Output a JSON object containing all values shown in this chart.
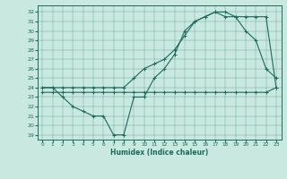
{
  "xlabel": "Humidex (Indice chaleur)",
  "xlim": [
    -0.5,
    23.5
  ],
  "ylim": [
    18.5,
    32.7
  ],
  "yticks": [
    19,
    20,
    21,
    22,
    23,
    24,
    25,
    26,
    27,
    28,
    29,
    30,
    31,
    32
  ],
  "xticks": [
    0,
    1,
    2,
    3,
    4,
    5,
    6,
    7,
    8,
    9,
    10,
    11,
    12,
    13,
    14,
    15,
    16,
    17,
    18,
    19,
    20,
    21,
    22,
    23
  ],
  "bg_color": "#c8e8e0",
  "line_color": "#1a6b5a",
  "line1": [
    24,
    24,
    23,
    22,
    21.5,
    21,
    21,
    19,
    19,
    23,
    23,
    25,
    26,
    27.5,
    30,
    31,
    31.5,
    32,
    31.5,
    31.5,
    30,
    29,
    26,
    25
  ],
  "line2": [
    23.5,
    23.5,
    23.5,
    23.5,
    23.5,
    23.5,
    23.5,
    23.5,
    23.5,
    23.5,
    23.5,
    23.5,
    23.5,
    23.5,
    23.5,
    23.5,
    23.5,
    23.5,
    23.5,
    23.5,
    23.5,
    23.5,
    23.5,
    24
  ],
  "line3": [
    24,
    24,
    24,
    24,
    24,
    24,
    24,
    24,
    24,
    25,
    26,
    26.5,
    27,
    28,
    29.5,
    31,
    31.5,
    32,
    32,
    31.5,
    31.5,
    31.5,
    31.5,
    24
  ]
}
